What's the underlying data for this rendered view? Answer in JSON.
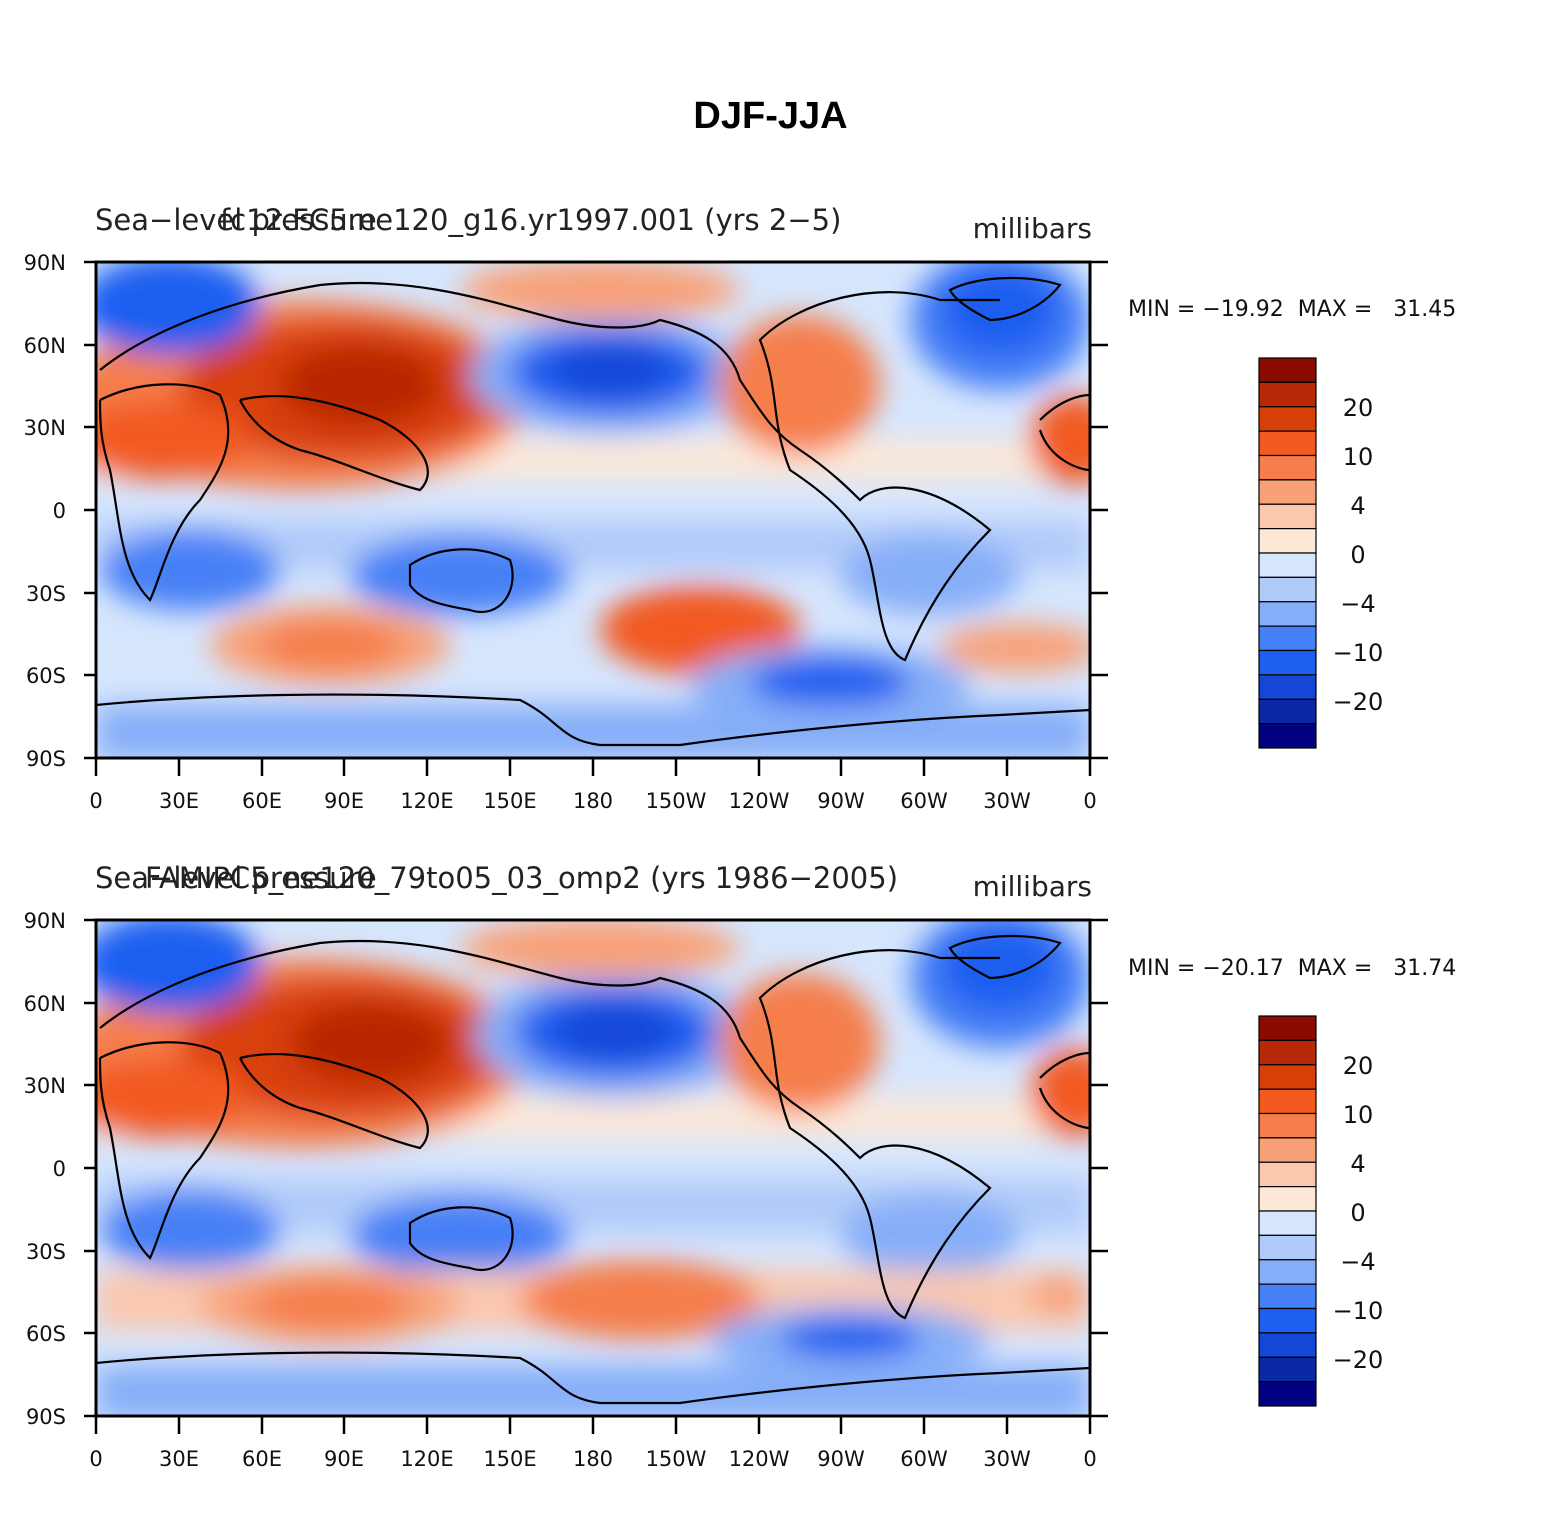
{
  "figure_title": "DJF-JJA",
  "colors": {
    "levels_labels": [
      "20",
      "10",
      "4",
      "0",
      "-4",
      "-10",
      "-20"
    ],
    "scale": [
      "#000080",
      "#0a28a4",
      "#1446d8",
      "#1e5ef0",
      "#4680f6",
      "#86aef8",
      "#b0caf9",
      "#d6e6fd",
      "#fde8d8",
      "#fbc8ae",
      "#f8a178",
      "#f57e4c",
      "#f25a20",
      "#d8400a",
      "#b82806",
      "#8a0b00"
    ]
  },
  "panels": [
    {
      "id": "top",
      "var_label": "Sea−level pressure",
      "case_label": "fc12.FC5.ne120_g16.yr1997.001 (yrs 2−5)",
      "units": "millibars",
      "minmax": "MIN = −19.92  MAX =   31.45",
      "colorbar_labels": [
        "20",
        "10",
        "4",
        "0",
        "−4",
        "−10",
        "−20"
      ]
    },
    {
      "id": "bottom",
      "var_label": "Sea−level pressure",
      "case_label": "FAMIPC5_ne120_79to05_03_omp2 (yrs 1986−2005)",
      "units": "millibars",
      "minmax": "MIN = −20.17  MAX =   31.74",
      "colorbar_labels": [
        "20",
        "10",
        "4",
        "0",
        "−4",
        "−10",
        "−20"
      ]
    }
  ],
  "axes": {
    "lat_labels": [
      "90N",
      "60N",
      "30N",
      "0",
      "30S",
      "60S",
      "90S"
    ],
    "lon_labels": [
      "0",
      "30E",
      "60E",
      "90E",
      "120E",
      "150E",
      "180",
      "150W",
      "120W",
      "90W",
      "60W",
      "30W",
      "0"
    ]
  },
  "chart_data": [
    {
      "type": "heatmap",
      "title": "fc12.FC5.ne120_g16.yr1997.001 (yrs 2−5)",
      "variable": "Sea−level pressure",
      "units": "millibars",
      "x_range": [
        0,
        360
      ],
      "y_range": [
        -90,
        90
      ],
      "min": -19.92,
      "max": 31.45,
      "color_levels": [
        -20,
        -10,
        -4,
        0,
        4,
        10,
        20
      ]
    },
    {
      "type": "heatmap",
      "title": "FAMIPC5_ne120_79to05_03_omp2 (yrs 1986−2005)",
      "variable": "Sea−level pressure",
      "units": "millibars",
      "x_range": [
        0,
        360
      ],
      "y_range": [
        -90,
        90
      ],
      "min": -20.17,
      "max": 31.74,
      "color_levels": [
        -20,
        -10,
        -4,
        0,
        4,
        10,
        20
      ]
    }
  ]
}
